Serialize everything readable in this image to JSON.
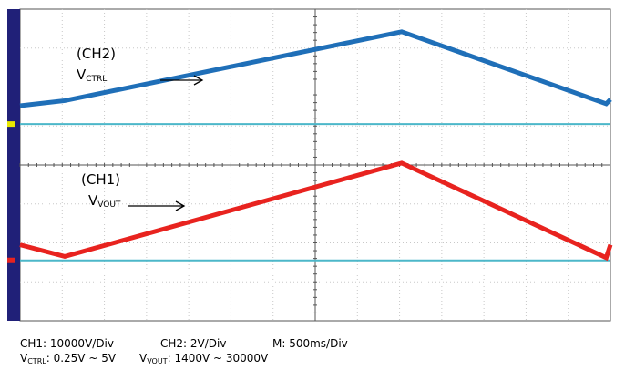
{
  "chart_data": {
    "type": "line",
    "x_divisions": 14,
    "y_divisions": 8,
    "grid": true,
    "background": "#ffffff",
    "grid_color": "#c8c8c8",
    "series": [
      {
        "name": "V_CTRL",
        "channel": "CH2",
        "color": "#1f6fb8",
        "baseline_div": 5.05,
        "points": [
          [
            0,
            5.52
          ],
          [
            1.06,
            5.65
          ],
          [
            9.05,
            7.42
          ],
          [
            13.9,
            5.57
          ],
          [
            14.0,
            5.68
          ]
        ]
      },
      {
        "name": "V_VOUT",
        "channel": "CH1",
        "color": "#e8231f",
        "baseline_div": 1.55,
        "points": [
          [
            0,
            1.95
          ],
          [
            1.06,
            1.65
          ],
          [
            9.05,
            4.05
          ],
          [
            13.9,
            1.62
          ],
          [
            14.0,
            1.95
          ]
        ]
      }
    ],
    "baseline_color": "#4cb7c9",
    "ch2_marker_color": "#e8e800",
    "ch1_marker_color": "#e8231f",
    "side_bar_color": "#202078"
  },
  "labels": {
    "ch2_label": "(CH2)",
    "ch2_v": "V",
    "ch2_sub": "CTRL",
    "ch1_label": "(CH1)",
    "ch1_v": "V",
    "ch1_sub": "VOUT"
  },
  "caption": {
    "ch1_scale": "CH1: 10000V/Div",
    "ch2_scale": "CH2: 2V/Div",
    "time_scale": "M: 500ms/Div",
    "vctrl_v": "V",
    "vctrl_sub": "CTRL",
    "vctrl_range": ": 0.25V ~ 5V",
    "vvout_v": "V",
    "vvout_sub": "VOUT",
    "vvout_range": ": 1400V ~ 30000V"
  }
}
